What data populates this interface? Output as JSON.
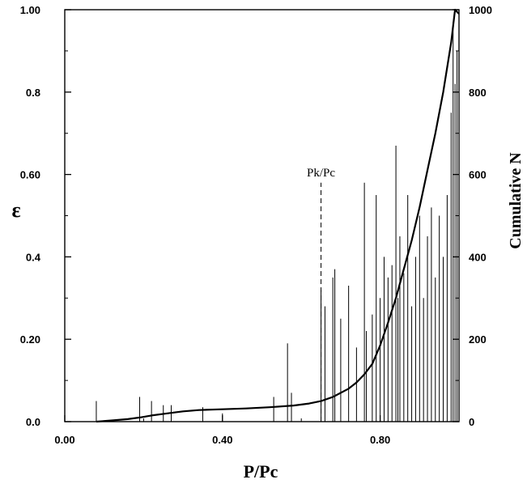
{
  "chart_data": {
    "type": "line",
    "title": "",
    "xlabel": "P/Pc",
    "ylabel": "ε",
    "y2label": "Cumulative N",
    "xlim": [
      0.0,
      1.0
    ],
    "ylim": [
      0.0,
      1.0
    ],
    "y2lim": [
      0,
      1000
    ],
    "x_ticks": [
      0.0,
      0.4,
      0.8
    ],
    "x_tick_labels": [
      "0.00",
      "0.40",
      "0.80"
    ],
    "y_ticks": [
      0.0,
      0.2,
      0.4,
      0.6,
      0.8,
      1.0
    ],
    "y_tick_labels": [
      "0.0",
      "0.20",
      "0.4",
      "0.60",
      "0.8",
      "1.00"
    ],
    "y2_ticks": [
      0,
      200,
      400,
      600,
      800,
      1000
    ],
    "y2_tick_labels": [
      "0",
      "200",
      "400",
      "600",
      "800",
      "1000"
    ],
    "grid": false,
    "annotation": {
      "text": "Pk/Pc",
      "x": 0.65,
      "y": 0.58
    },
    "series": [
      {
        "axis": "right",
        "style": "curve",
        "x": [
          0.08,
          0.12,
          0.16,
          0.19,
          0.22,
          0.26,
          0.3,
          0.34,
          0.4,
          0.46,
          0.52,
          0.58,
          0.62,
          0.65,
          0.68,
          0.72,
          0.74,
          0.76,
          0.78,
          0.8,
          0.82,
          0.84,
          0.86,
          0.88,
          0.9,
          0.92,
          0.94,
          0.96,
          0.98,
          0.99,
          1.0
        ],
        "y": [
          0,
          3,
          6,
          10,
          15,
          20,
          25,
          28,
          30,
          32,
          35,
          39,
          44,
          50,
          60,
          80,
          95,
          115,
          140,
          185,
          240,
          300,
          370,
          440,
          520,
          610,
          700,
          800,
          920,
          1000,
          990
        ]
      },
      {
        "axis": "left",
        "style": "spikes",
        "x": [
          0.08,
          0.19,
          0.22,
          0.25,
          0.27,
          0.35,
          0.4,
          0.53,
          0.565,
          0.575,
          0.65,
          0.66,
          0.68,
          0.685,
          0.7,
          0.72,
          0.74,
          0.76,
          0.765,
          0.78,
          0.79,
          0.8,
          0.81,
          0.82,
          0.83,
          0.84,
          0.845,
          0.85,
          0.86,
          0.87,
          0.88,
          0.89,
          0.9,
          0.91,
          0.92,
          0.93,
          0.94,
          0.95,
          0.96,
          0.97,
          0.98,
          0.985,
          0.99,
          0.995,
          1.0
        ],
        "y": [
          0.05,
          0.06,
          0.05,
          0.04,
          0.04,
          0.035,
          0.02,
          0.06,
          0.19,
          0.07,
          0.32,
          0.28,
          0.35,
          0.37,
          0.25,
          0.33,
          0.18,
          0.58,
          0.22,
          0.26,
          0.55,
          0.3,
          0.4,
          0.35,
          0.38,
          0.67,
          0.3,
          0.45,
          0.36,
          0.55,
          0.28,
          0.4,
          0.5,
          0.3,
          0.45,
          0.52,
          0.35,
          0.5,
          0.4,
          0.55,
          0.75,
          0.97,
          0.82,
          0.9,
          0.6
        ]
      }
    ]
  }
}
